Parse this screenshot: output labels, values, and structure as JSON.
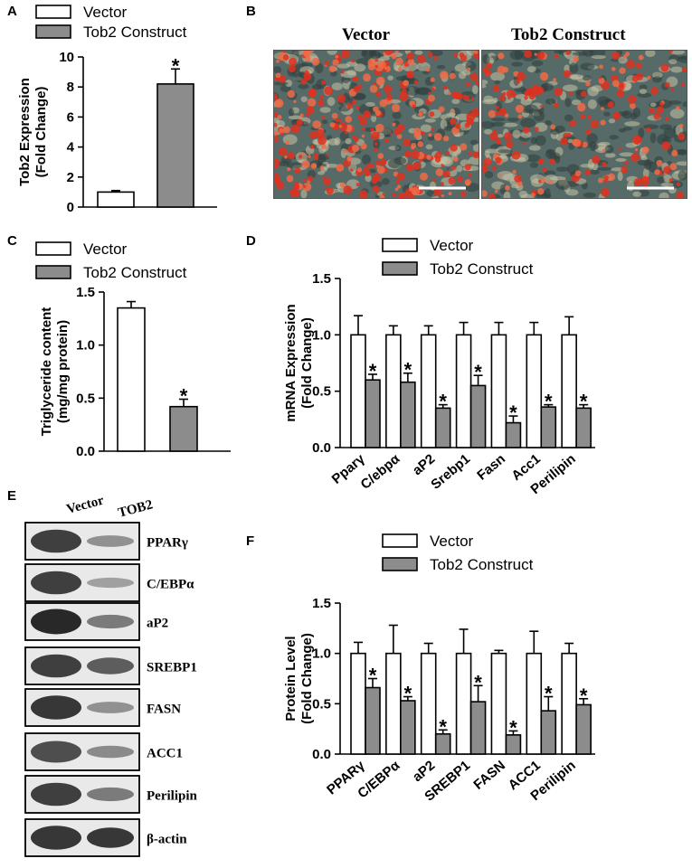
{
  "panels": {
    "a": "A",
    "b": "B",
    "c": "C",
    "d": "D",
    "e": "E",
    "f": "F"
  },
  "legend": {
    "vector": "Vector",
    "tob2": "Tob2 Construct"
  },
  "micrographs": {
    "left_title": "Vector",
    "right_title": "Tob2 Construct"
  },
  "blot": {
    "lane_labels": [
      "Vector",
      "TOB2"
    ],
    "rows": [
      {
        "label": "PPARγ",
        "vector": 0.85,
        "tob2": 0.3
      },
      {
        "label": "C/EBPα",
        "vector": 0.85,
        "tob2": 0.2
      },
      {
        "label": "aP2",
        "vector": 1.0,
        "tob2": 0.45
      },
      {
        "label": "SREBP1",
        "vector": 0.85,
        "tob2": 0.65
      },
      {
        "label": "FASN",
        "vector": 0.9,
        "tob2": 0.3
      },
      {
        "label": "ACC1",
        "vector": 0.75,
        "tob2": 0.35
      },
      {
        "label": "Perilipin",
        "vector": 0.85,
        "tob2": 0.45
      },
      {
        "label": "β-actin",
        "vector": 0.9,
        "tob2": 0.9
      }
    ]
  },
  "colors": {
    "vector_fill": "#ffffff",
    "tob2_fill": "#8c8c8c",
    "stroke": "#000000"
  },
  "chart_data": [
    {
      "id": "A",
      "type": "bar",
      "categories": [
        "Vector",
        "Tob2 Construct"
      ],
      "values": [
        1.0,
        8.2
      ],
      "errors": [
        0.1,
        1.0
      ],
      "significant": [
        false,
        true
      ],
      "ylabel_lines": [
        "Tob2 Expression",
        "(Fold Change)"
      ],
      "ylim": [
        0,
        10
      ],
      "yticks": [
        0,
        2,
        4,
        6,
        8,
        10
      ],
      "ytick_labels": [
        "0",
        "2",
        "4",
        "6",
        "8",
        "10"
      ]
    },
    {
      "id": "C",
      "type": "bar",
      "categories": [
        "Vector",
        "Tob2 Construct"
      ],
      "values": [
        1.35,
        0.42
      ],
      "errors": [
        0.06,
        0.07
      ],
      "significant": [
        false,
        true
      ],
      "ylabel_lines": [
        "Triglyceride content",
        "(mg/mg protein)"
      ],
      "ylim": [
        0,
        1.5
      ],
      "yticks": [
        0,
        0.5,
        1.0,
        1.5
      ],
      "ytick_labels": [
        "0.0",
        "0.5",
        "1.0",
        "1.5"
      ]
    },
    {
      "id": "D",
      "type": "bar",
      "categories": [
        "Pparγ",
        "C/ebpα",
        "aP2",
        "Srebp1",
        "Fasn",
        "Acc1",
        "Perilipin"
      ],
      "series": [
        {
          "name": "Vector",
          "values": [
            1.0,
            1.0,
            1.0,
            1.0,
            1.0,
            1.0,
            1.0
          ],
          "errors": [
            0.17,
            0.08,
            0.08,
            0.11,
            0.11,
            0.11,
            0.16
          ]
        },
        {
          "name": "Tob2 Construct",
          "values": [
            0.6,
            0.58,
            0.35,
            0.55,
            0.22,
            0.36,
            0.35
          ],
          "errors": [
            0.05,
            0.08,
            0.03,
            0.09,
            0.06,
            0.02,
            0.03
          ]
        }
      ],
      "significant": [
        true,
        true,
        true,
        true,
        true,
        true,
        true
      ],
      "ylabel_lines": [
        "mRNA Expression",
        "(Fold Change)"
      ],
      "ylim": [
        0,
        1.5
      ],
      "yticks": [
        0,
        0.5,
        1.0,
        1.5
      ],
      "ytick_labels": [
        "0.0",
        "0.5",
        "1.0",
        "1.5"
      ]
    },
    {
      "id": "F",
      "type": "bar",
      "categories": [
        "PPARγ",
        "C/EBPα",
        "aP2",
        "SREBP1",
        "FASN",
        "ACC1",
        "Perilipin"
      ],
      "series": [
        {
          "name": "Vector",
          "values": [
            1.0,
            1.0,
            1.0,
            1.0,
            1.0,
            1.0,
            1.0
          ],
          "errors": [
            0.11,
            0.28,
            0.1,
            0.24,
            0.03,
            0.22,
            0.1
          ]
        },
        {
          "name": "Tob2 Construct",
          "values": [
            0.66,
            0.53,
            0.2,
            0.52,
            0.19,
            0.43,
            0.49
          ],
          "errors": [
            0.09,
            0.04,
            0.04,
            0.16,
            0.04,
            0.14,
            0.06
          ]
        }
      ],
      "significant": [
        true,
        true,
        true,
        true,
        true,
        true,
        true
      ],
      "ylabel_lines": [
        "Protein Level",
        "(Fold Change)"
      ],
      "ylim": [
        0,
        1.5
      ],
      "yticks": [
        0,
        0.5,
        1.0,
        1.5
      ],
      "ytick_labels": [
        "0.0",
        "0.5",
        "1.0",
        "1.5"
      ]
    }
  ]
}
